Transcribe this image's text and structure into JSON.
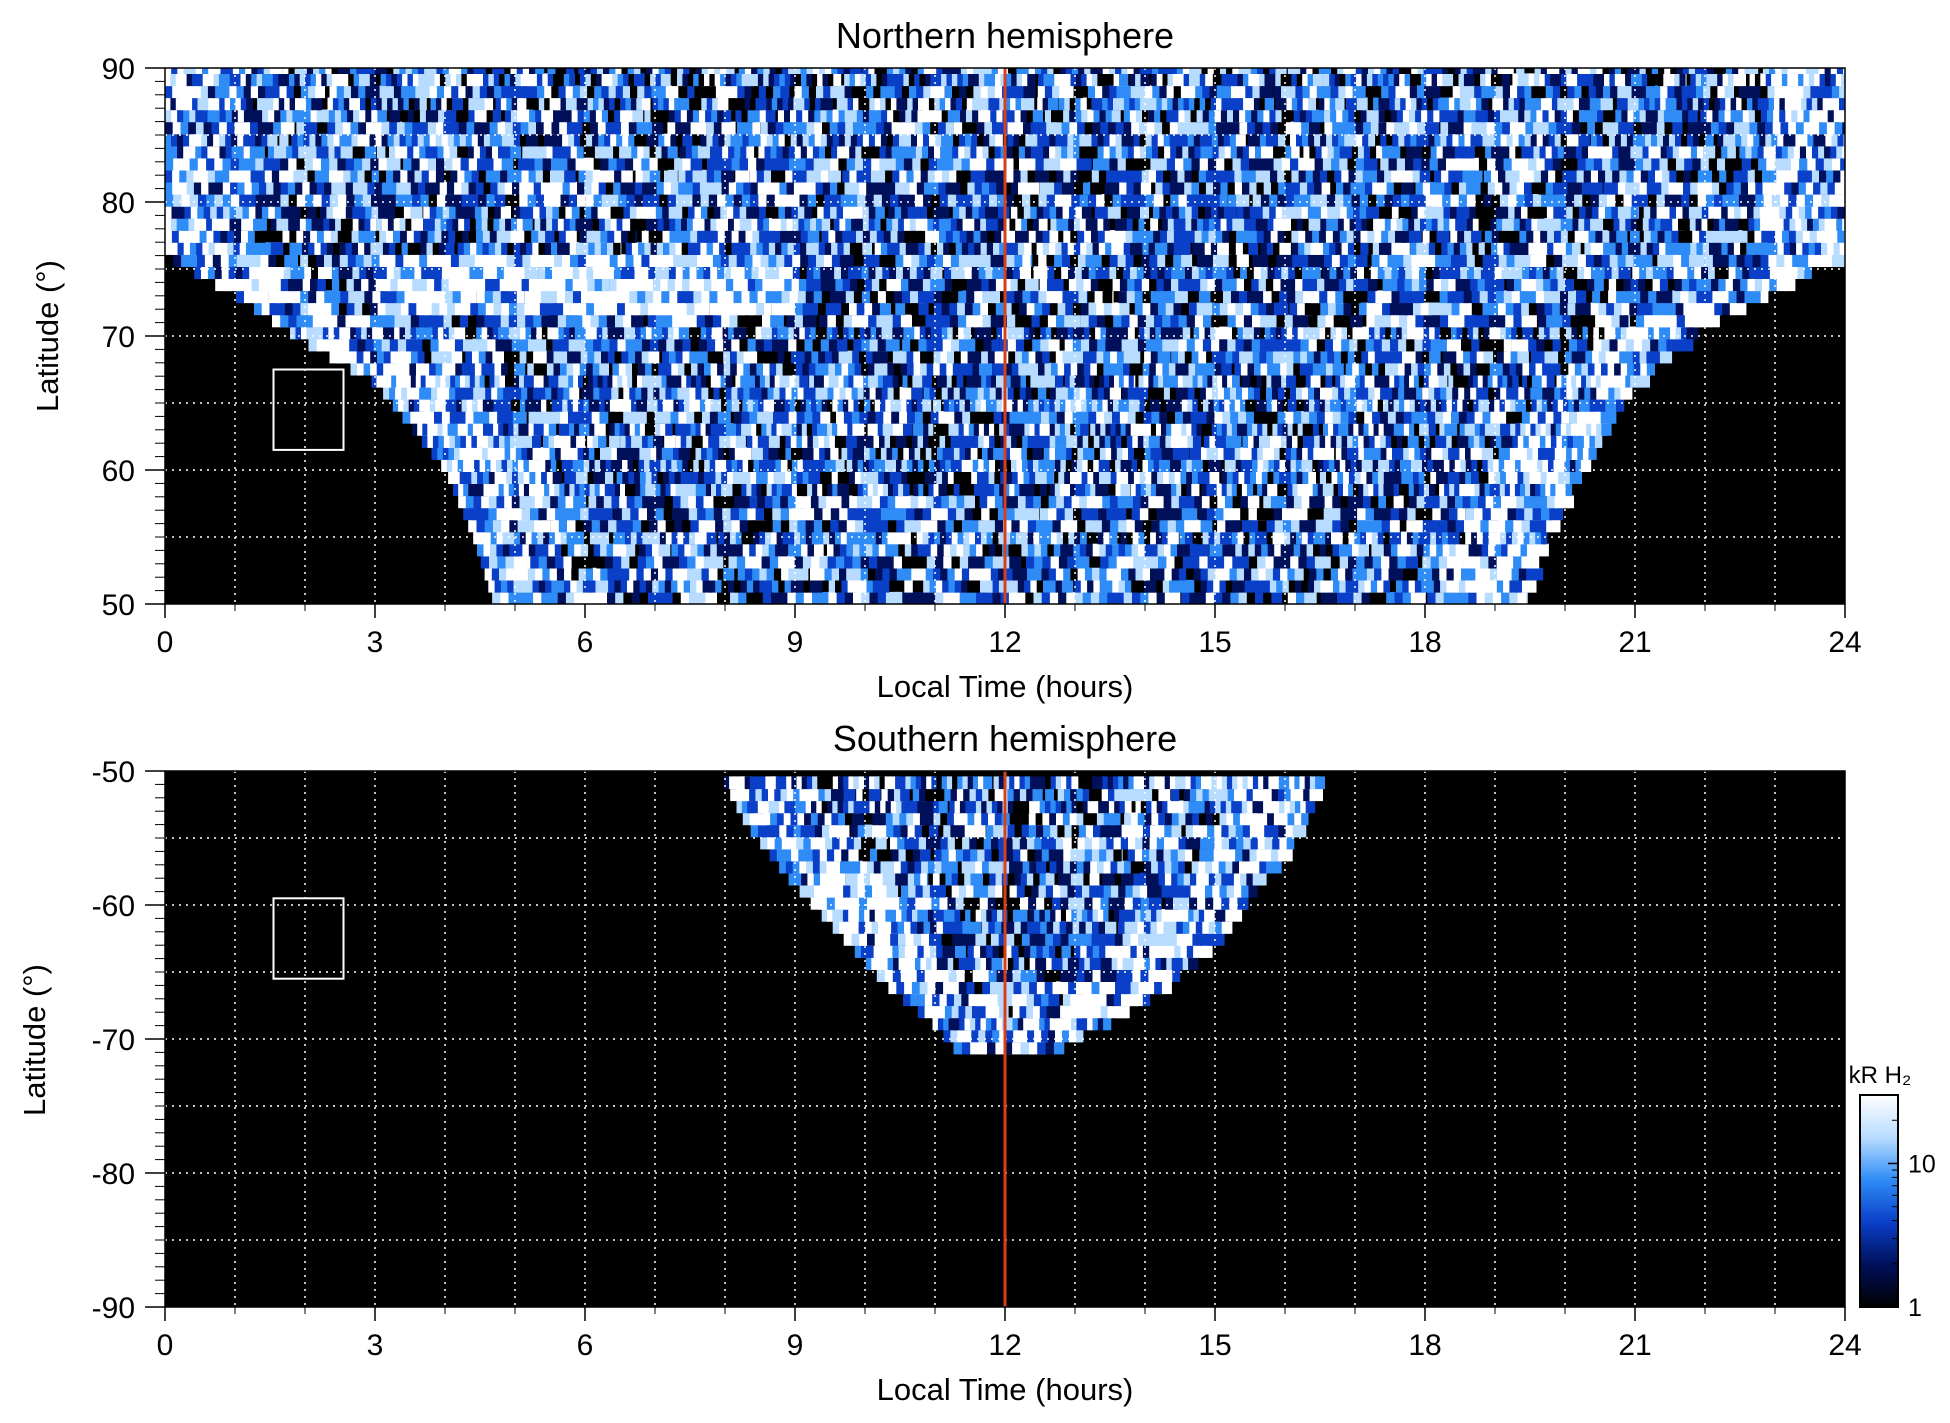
{
  "chart_data": [
    {
      "type": "heatmap",
      "title": "Northern hemisphere",
      "xlabel": "Local Time (hours)",
      "ylabel": "Latitude (°)",
      "xlim": [
        0,
        24
      ],
      "ylim": [
        50,
        90
      ],
      "xticks": [
        "0",
        "3",
        "6",
        "9",
        "12",
        "15",
        "18",
        "21",
        "24"
      ],
      "yticks": [
        "50",
        "60",
        "70",
        "80",
        "90"
      ],
      "grid": true,
      "marker_line_local_time": 12,
      "marker_line_color": "#d9401a",
      "reference_box": {
        "lt": [
          1.55,
          2.55
        ],
        "lat": [
          61.5,
          67.5
        ]
      },
      "coverage_boundary": [
        [
          0,
          76
        ],
        [
          1,
          73
        ],
        [
          2,
          69.5
        ],
        [
          3,
          66.5
        ],
        [
          4,
          60
        ],
        [
          4.4,
          55
        ],
        [
          4.7,
          50
        ],
        [
          19.4,
          50
        ],
        [
          19.7,
          55
        ],
        [
          20.2,
          60
        ],
        [
          20.8,
          65
        ],
        [
          21.7,
          70
        ],
        [
          23,
          73.5
        ],
        [
          24,
          76
        ]
      ],
      "colorbar": {
        "label": "kR H₂",
        "scale": "log",
        "range": [
          1,
          30
        ],
        "ticks": [
          "1",
          "10"
        ],
        "colors": [
          "#000000",
          "#00105a",
          "#0a3fc8",
          "#2f8cf6",
          "#b8dcff",
          "#ffffff"
        ]
      }
    },
    {
      "type": "heatmap",
      "title": "Southern hemisphere",
      "xlabel": "Local Time (hours)",
      "ylabel": "Latitude (°)",
      "xlim": [
        0,
        24
      ],
      "ylim": [
        -90,
        -50
      ],
      "xticks": [
        "0",
        "3",
        "6",
        "9",
        "12",
        "15",
        "18",
        "21",
        "24"
      ],
      "yticks": [
        "-90",
        "-80",
        "-70",
        "-60",
        "-50"
      ],
      "grid": true,
      "marker_line_local_time": 12,
      "marker_line_color": "#d9401a",
      "reference_box": {
        "lt": [
          1.55,
          2.55
        ],
        "lat": [
          -65.5,
          -59.5
        ]
      },
      "coverage_boundary": [
        [
          7.9,
          -50
        ],
        [
          8.3,
          -54
        ],
        [
          8.9,
          -58
        ],
        [
          9.6,
          -62
        ],
        [
          10.3,
          -66
        ],
        [
          11,
          -69
        ],
        [
          11.4,
          -71.5
        ],
        [
          12.6,
          -71
        ],
        [
          13.4,
          -69
        ],
        [
          14.3,
          -66
        ],
        [
          15.1,
          -62
        ],
        [
          15.7,
          -58
        ],
        [
          16.2,
          -54
        ],
        [
          16.5,
          -50
        ]
      ]
    }
  ]
}
